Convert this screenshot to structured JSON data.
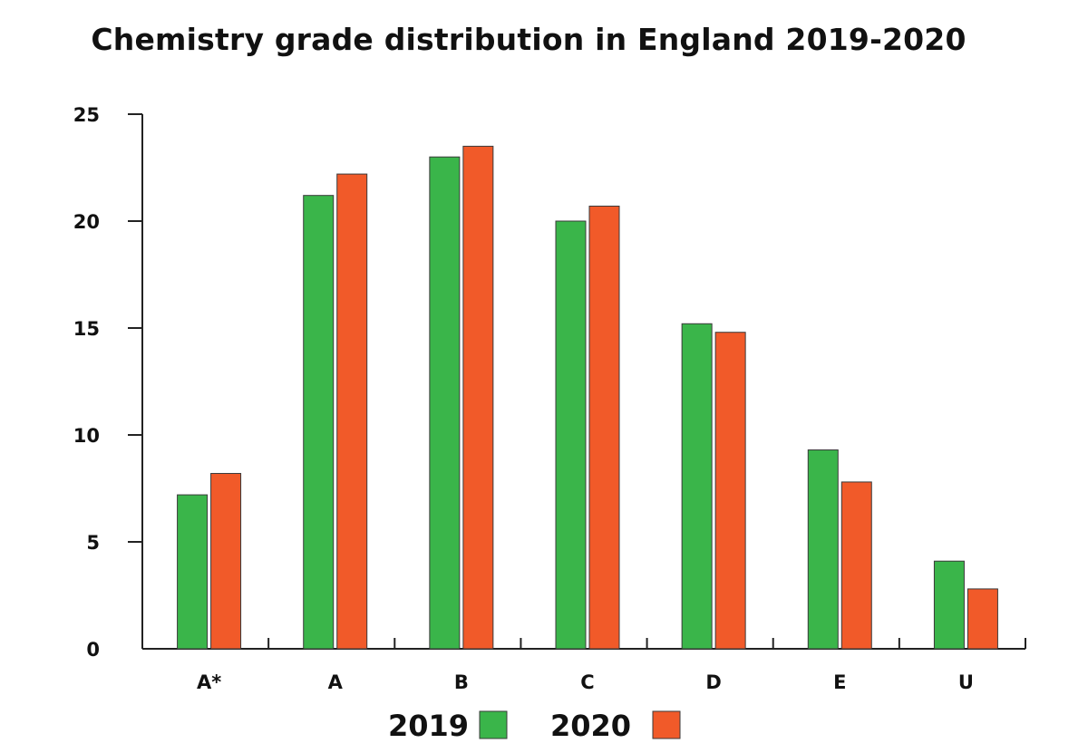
{
  "chart_data": {
    "type": "bar",
    "title": "Chemistry grade distribution in England 2019-2020",
    "xlabel": "",
    "ylabel": "",
    "categories": [
      "A*",
      "A",
      "B",
      "C",
      "D",
      "E",
      "U"
    ],
    "series": [
      {
        "name": "2019",
        "color": "#3ab54a",
        "values": [
          7.2,
          21.2,
          23.0,
          20.0,
          15.2,
          9.3,
          4.1
        ]
      },
      {
        "name": "2020",
        "color": "#f15a29",
        "values": [
          8.2,
          22.2,
          23.5,
          20.7,
          14.8,
          7.8,
          2.8
        ]
      }
    ],
    "ylim": [
      0,
      25
    ],
    "yticks": [
      0,
      5,
      10,
      15,
      20,
      25
    ],
    "grid": false,
    "legend": "bottom-center"
  }
}
